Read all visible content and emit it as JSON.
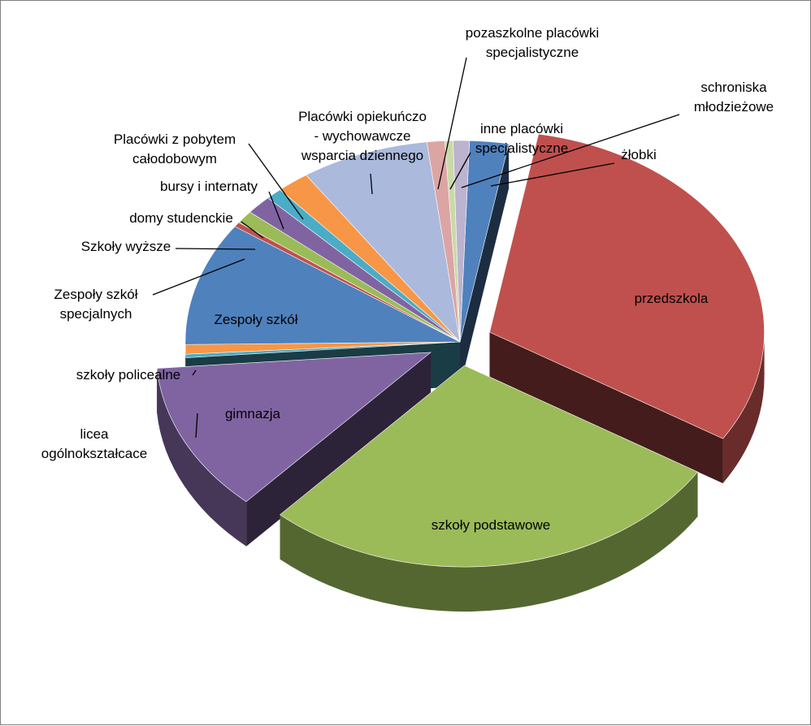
{
  "chart_data": {
    "type": "pie",
    "style": "3d-exploded",
    "legend": "none",
    "slices": [
      {
        "label": "żłobki",
        "value": 2.4,
        "color": "#4f81bd",
        "explode": 0,
        "label_lines": [
          "żłobki"
        ]
      },
      {
        "label": "przedszkola",
        "value": 32.5,
        "color": "#c0504d",
        "explode": 1,
        "label_lines": [
          "przedszkola"
        ]
      },
      {
        "label": "szkoły podstawowe",
        "value": 29.2,
        "color": "#9bbb59",
        "explode": 1,
        "label_lines": [
          "szkoły podstawowe"
        ]
      },
      {
        "label": "gimnazja",
        "value": 12.6,
        "color": "#8064a2",
        "explode": 1,
        "label_lines": [
          "gimnazja"
        ]
      },
      {
        "label": "licea ogólnokształcace",
        "value": 0.3,
        "color": "#4bacc6",
        "explode": 0,
        "label_lines": [
          "licea",
          "ogólnokształcace"
        ]
      },
      {
        "label": "szkoły policealne",
        "value": 0.8,
        "color": "#f79646",
        "explode": 0,
        "label_lines": [
          "szkoły policealne"
        ]
      },
      {
        "label": "Zespoły szkół",
        "value": 10.4,
        "color": "#4f81bd",
        "explode": 0,
        "label_lines": [
          "Zespoły szkół"
        ]
      },
      {
        "label": "Zespoły szkół specjalnych",
        "value": 0.4,
        "color": "#c0504d",
        "explode": 0,
        "label_lines": [
          "Zespoły szkół",
          "specjalnych"
        ]
      },
      {
        "label": "Szkoły wyższe",
        "value": 1.1,
        "color": "#9bbb59",
        "explode": 0,
        "label_lines": [
          "Szkoły wyższe"
        ]
      },
      {
        "label": "domy studenckie",
        "value": 1.6,
        "color": "#8064a2",
        "explode": 0,
        "label_lines": [
          "domy studenckie"
        ]
      },
      {
        "label": "bursy i internaty",
        "value": 1.0,
        "color": "#4bacc6",
        "explode": 0,
        "label_lines": [
          "bursy i internaty"
        ]
      },
      {
        "label": "Placówki z pobytem całodobowym",
        "value": 2.0,
        "color": "#f79646",
        "explode": 0,
        "label_lines": [
          "Placówki z pobytem",
          "całodobowym"
        ]
      },
      {
        "label": "Placówki opiekuńczo - wychowawcze wsparcia dziennego",
        "value": 7.9,
        "color": "#aab9dc",
        "explode": 0,
        "label_lines": [
          "Placówki opiekuńczo",
          "- wychowawcze",
          "wsparcia dziennego"
        ]
      },
      {
        "label": "pozaszkolne placówki specjalistyczne",
        "value": 1.1,
        "color": "#dba5a4",
        "explode": 0,
        "label_lines": [
          "pozaszkolne placówki",
          "specjalistyczne"
        ]
      },
      {
        "label": "inne placówki specjalistyczne",
        "value": 0.5,
        "color": "#c9daa7",
        "explode": 0,
        "label_lines": [
          "inne placówki",
          "specjalistyczne"
        ]
      },
      {
        "label": "schroniska młodzieżowe",
        "value": 1.0,
        "color": "#bcb3cf",
        "explode": 0,
        "label_lines": [
          "schroniska",
          "młodzieżowe"
        ]
      }
    ]
  }
}
